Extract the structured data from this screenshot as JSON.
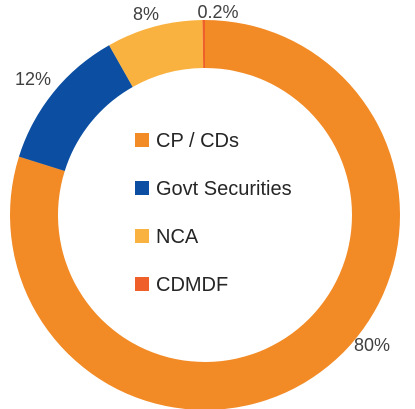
{
  "chart_data": {
    "type": "pie",
    "subtype": "donut",
    "title": "",
    "legend_position": "center",
    "slices": [
      {
        "name": "CP / CDs",
        "value": 80,
        "label": "80%",
        "color": "#F28A25"
      },
      {
        "name": "Govt Securities",
        "value": 12,
        "label": "12%",
        "color": "#0B4EA2"
      },
      {
        "name": "NCA",
        "value": 8,
        "label": "8%",
        "color": "#F9B240"
      },
      {
        "name": "CDMDF",
        "value": 0.2,
        "label": "0.2%",
        "color": "#EF5F2A"
      }
    ]
  }
}
